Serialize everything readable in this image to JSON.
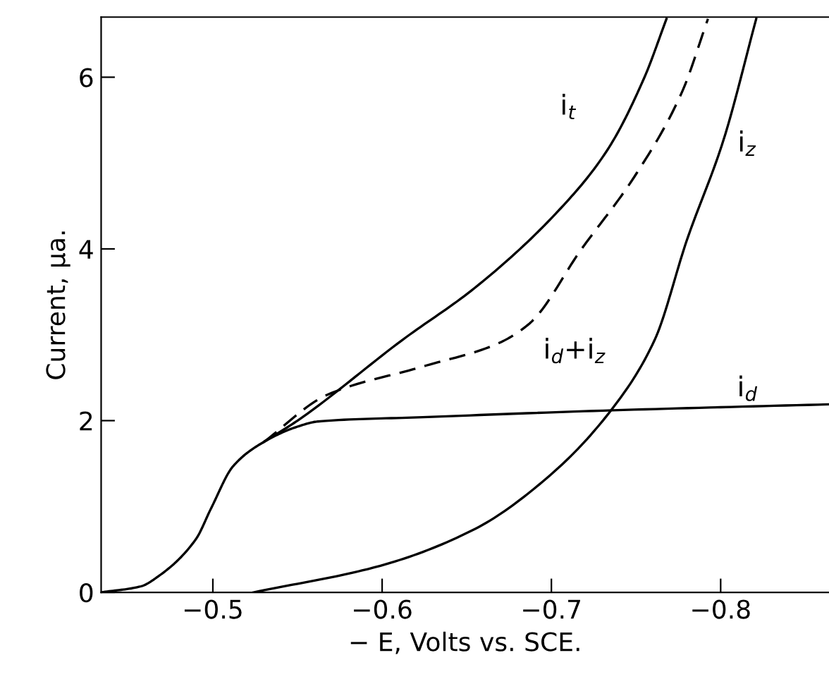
{
  "chart_data": {
    "type": "line",
    "xlabel": "− E, Volts vs. SCE.",
    "ylabel": "Current, μa.",
    "xlim": [
      -0.434,
      -0.864
    ],
    "ylim": [
      0,
      6.7
    ],
    "xticks": [
      {
        "value": -0.5,
        "label": "−0.5"
      },
      {
        "value": -0.6,
        "label": "−0.6"
      },
      {
        "value": -0.7,
        "label": "−0.7"
      },
      {
        "value": -0.8,
        "label": "−0.8"
      }
    ],
    "yticks": [
      0,
      2,
      4,
      6
    ],
    "grid": false,
    "legend": false,
    "marker": "none",
    "series": [
      {
        "name": "i$_{d}$",
        "color": "#000000",
        "line_style": "solid",
        "x": [
          -0.434,
          -0.4575,
          -0.468,
          -0.49,
          -0.499,
          -0.512,
          -0.53,
          -0.55,
          -0.562,
          -0.624,
          -0.736,
          -0.864
        ],
        "values": [
          0,
          0.07,
          0.19,
          0.62,
          0.98,
          1.47,
          1.75,
          1.93,
          1.99,
          2.04,
          2.12,
          2.19
        ]
      },
      {
        "name": "i$_{t}$",
        "color": "#000000",
        "line_style": "solid",
        "x": [
          -0.53,
          -0.55,
          -0.612,
          -0.655,
          -0.7025,
          -0.733,
          -0.755,
          -0.768
        ],
        "values": [
          1.75,
          2.0,
          2.94,
          3.55,
          4.41,
          5.15,
          6.0,
          6.68
        ]
      },
      {
        "name": "i$_{d}$+i$_{z}$",
        "color": "#000000",
        "line_style": "dashed",
        "x": [
          -0.53,
          -0.5675,
          -0.624,
          -0.6675,
          -0.687,
          -0.7175,
          -0.749,
          -0.777,
          -0.7925
        ],
        "values": [
          1.75,
          2.3,
          2.63,
          2.89,
          3.13,
          3.99,
          4.84,
          5.82,
          6.68
        ]
      },
      {
        "name": "i$_{z}$",
        "color": "#000000",
        "line_style": "solid",
        "x": [
          -0.524,
          -0.599,
          -0.655,
          -0.699,
          -0.736,
          -0.761,
          -0.78,
          -0.8017,
          -0.821
        ],
        "values": [
          0,
          0.31,
          0.74,
          1.36,
          2.14,
          2.94,
          4.1,
          5.27,
          6.68
        ]
      }
    ]
  }
}
